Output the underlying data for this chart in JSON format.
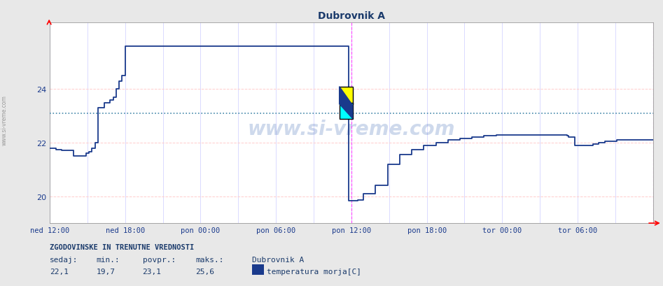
{
  "title": "Dubrovnik A",
  "title_color": "#1a3a6b",
  "bg_color": "#e8e8e8",
  "plot_bg_color": "#ffffff",
  "line_color": "#1a3a8c",
  "line_width": 1.2,
  "ylim": [
    19.0,
    26.5
  ],
  "yticks": [
    20,
    22,
    24
  ],
  "avg_line_y": 23.1,
  "avg_line_color": "#4488aa",
  "grid_color_h": "#ffcccc",
  "grid_color_v": "#ccccff",
  "vline_color": "#ff44ff",
  "xticklabels": [
    "ned 12:00",
    "ned 18:00",
    "pon 00:00",
    "pon 06:00",
    "pon 12:00",
    "pon 18:00",
    "tor 00:00",
    "tor 06:00"
  ],
  "xtick_positions": [
    0,
    0.125,
    0.25,
    0.375,
    0.5,
    0.625,
    0.75,
    0.875
  ],
  "footer_title": "ZGODOVINSKE IN TRENUTNE VREDNOSTI",
  "footer_col1_lbl": "sedaj:",
  "footer_col2_lbl": "min.:",
  "footer_col3_lbl": "povpr.:",
  "footer_col4_lbl": "maks.:",
  "footer_col1_val": "22,1",
  "footer_col2_val": "19,7",
  "footer_col3_val": "23,1",
  "footer_col4_val": "25,6",
  "footer_series_name": "Dubrovnik A",
  "footer_series_label": "temperatura morja[C]",
  "footer_series_color": "#1a3a8c",
  "watermark": "www.si-vreme.com",
  "sidebar_text": "www.si-vreme.com",
  "data_x": [
    0,
    0.01,
    0.02,
    0.04,
    0.05,
    0.06,
    0.065,
    0.07,
    0.075,
    0.08,
    0.09,
    0.1,
    0.105,
    0.11,
    0.115,
    0.12,
    0.125,
    0.13,
    0.14,
    0.16,
    0.18,
    0.2,
    0.22,
    0.245,
    0.26,
    0.28,
    0.3,
    0.32,
    0.34,
    0.36,
    0.38,
    0.4,
    0.42,
    0.44,
    0.46,
    0.48,
    0.493,
    0.494,
    0.495,
    0.496,
    0.497,
    0.498,
    0.5,
    0.51,
    0.52,
    0.54,
    0.56,
    0.58,
    0.6,
    0.62,
    0.64,
    0.66,
    0.68,
    0.7,
    0.72,
    0.74,
    0.76,
    0.78,
    0.8,
    0.82,
    0.84,
    0.855,
    0.857,
    0.86,
    0.87,
    0.875,
    0.9,
    0.91,
    0.92,
    0.94,
    0.96,
    0.98,
    1.0
  ],
  "data_y": [
    21.8,
    21.75,
    21.7,
    21.5,
    21.5,
    21.6,
    21.65,
    21.8,
    22.0,
    23.3,
    23.5,
    23.6,
    23.7,
    24.0,
    24.3,
    24.5,
    25.6,
    25.6,
    25.6,
    25.6,
    25.6,
    25.6,
    25.6,
    25.6,
    25.6,
    25.6,
    25.6,
    25.6,
    25.6,
    25.6,
    25.6,
    25.6,
    25.6,
    25.6,
    25.6,
    25.6,
    25.6,
    25.6,
    19.9,
    19.82,
    19.82,
    19.82,
    19.82,
    19.85,
    20.1,
    20.4,
    21.2,
    21.55,
    21.75,
    21.9,
    22.0,
    22.1,
    22.15,
    22.2,
    22.25,
    22.3,
    22.3,
    22.3,
    22.3,
    22.3,
    22.3,
    22.3,
    22.25,
    22.2,
    21.9,
    21.9,
    21.95,
    22.0,
    22.05,
    22.1,
    22.1,
    22.1,
    22.1
  ]
}
